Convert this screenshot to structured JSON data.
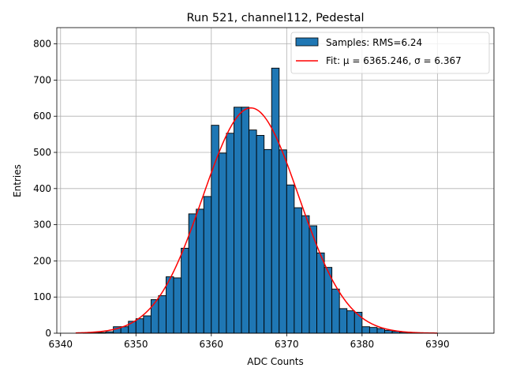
{
  "chart_data": {
    "type": "bar",
    "title": "Run 521, channel112, Pedestal",
    "xlabel": "ADC Counts",
    "ylabel": "Entries",
    "xlim": [
      6339.5,
      6397.5
    ],
    "ylim": [
      0,
      845
    ],
    "xticks": [
      6340,
      6350,
      6360,
      6370,
      6380,
      6390
    ],
    "yticks": [
      0,
      100,
      200,
      300,
      400,
      500,
      600,
      700,
      800
    ],
    "grid": true,
    "legend_position": "top-right",
    "histogram": {
      "name": "Samples: RMS=6.24",
      "color": "#1f77b4",
      "edgecolor": "#000000",
      "bin_width": 1,
      "bins": [
        6342,
        6343,
        6344,
        6345,
        6346,
        6347,
        6348,
        6349,
        6350,
        6351,
        6352,
        6353,
        6354,
        6355,
        6356,
        6357,
        6358,
        6359,
        6360,
        6361,
        6362,
        6363,
        6364,
        6365,
        6366,
        6367,
        6368,
        6369,
        6370,
        6371,
        6372,
        6373,
        6374,
        6375,
        6376,
        6377,
        6378,
        6379,
        6380,
        6381,
        6382,
        6383,
        6384,
        6385,
        6386,
        6387,
        6388,
        6389,
        6390,
        6391,
        6392,
        6393,
        6394,
        6395
      ],
      "counts": [
        0,
        1,
        1,
        2,
        4,
        18,
        18,
        33,
        40,
        48,
        93,
        104,
        156,
        153,
        235,
        330,
        343,
        378,
        575,
        498,
        553,
        625,
        625,
        562,
        547,
        508,
        733,
        507,
        410,
        347,
        325,
        297,
        222,
        182,
        122,
        68,
        62,
        58,
        18,
        16,
        13,
        8,
        5,
        3,
        1,
        1,
        0,
        0,
        0,
        0,
        0,
        0,
        0,
        0
      ]
    },
    "fit": {
      "name": "Fit: μ = 6365.246, σ = 6.367",
      "mu": 6365.246,
      "sigma": 6.367,
      "amplitude": 623,
      "x_range": [
        6342,
        6390
      ],
      "color": "#ff0000"
    }
  }
}
